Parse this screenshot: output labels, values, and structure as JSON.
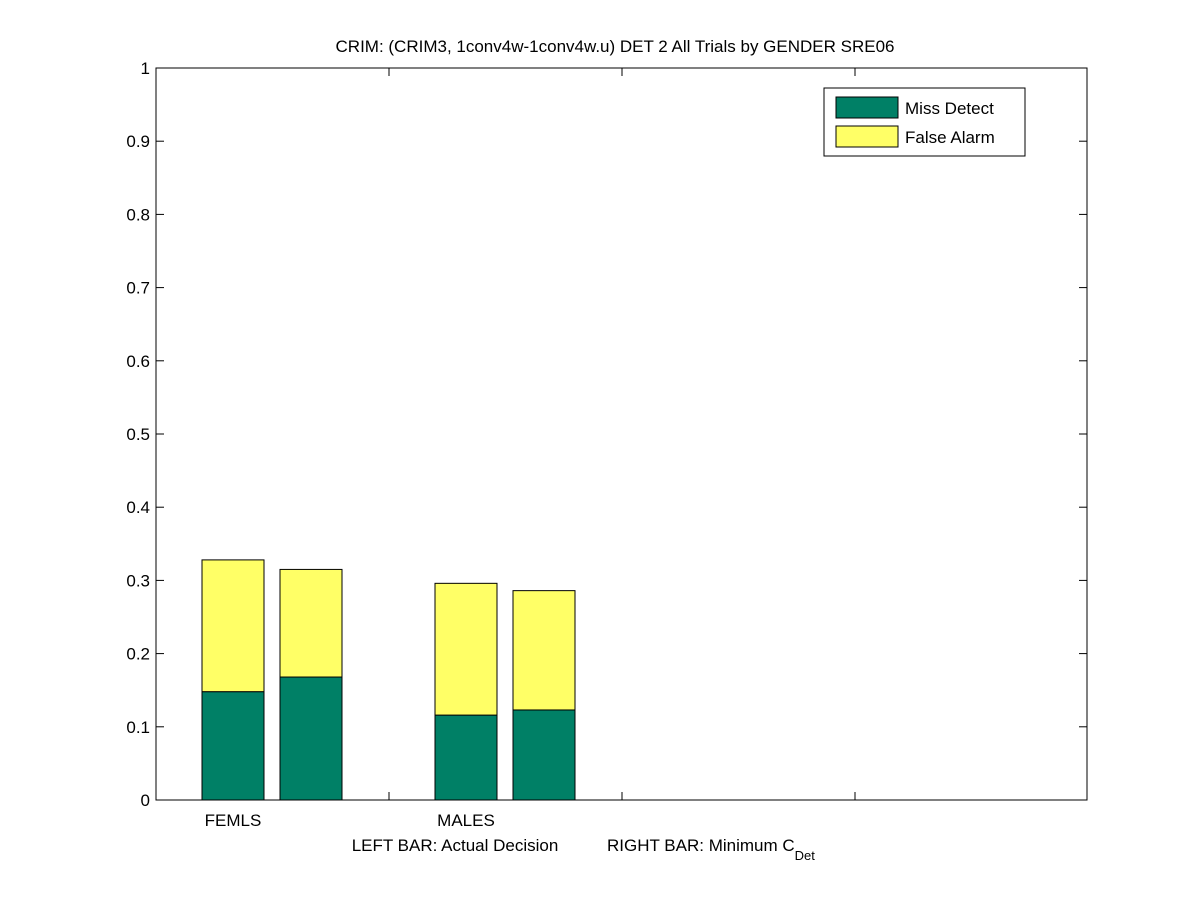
{
  "chart_data": {
    "type": "bar",
    "stacked": true,
    "title": "CRIM: (CRIM3, 1conv4w-1conv4w.u) DET 2 All Trials by GENDER SRE06",
    "xlabel_left": "LEFT BAR: Actual Decision",
    "xlabel_right_main": "RIGHT BAR: Minimum C",
    "xlabel_right_sub": "Det",
    "categories": [
      "FEMLS",
      "MALES"
    ],
    "ylim": [
      0,
      1
    ],
    "yticks": [
      "0",
      "0.1",
      "0.2",
      "0.3",
      "0.4",
      "0.5",
      "0.6",
      "0.7",
      "0.8",
      "0.9",
      "1"
    ],
    "grid": false,
    "legend_position": "top-right",
    "series": [
      {
        "name": "Miss Detect",
        "color": "#008066",
        "actual": [
          0.148,
          0.116
        ],
        "minimum": [
          0.168,
          0.123
        ]
      },
      {
        "name": "False Alarm",
        "color": "#ffff66",
        "actual": [
          0.18,
          0.18
        ],
        "minimum": [
          0.147,
          0.163
        ]
      }
    ]
  }
}
